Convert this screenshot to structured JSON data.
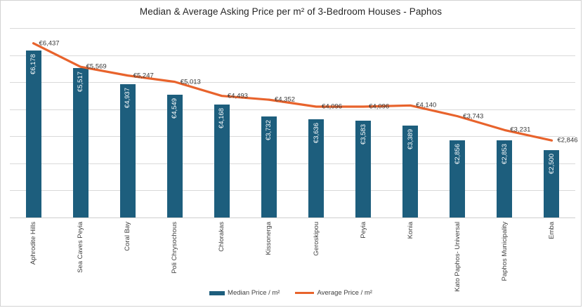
{
  "chart_data": {
    "type": "bar",
    "title": "Median & Average Asking Price per m² of 3-Bedroom Houses - Paphos",
    "categories": [
      "Aphrodite Hills",
      "Sea Caves Peyia",
      "Coral Bay",
      "Poli Chrysochous",
      "Chlorakas",
      "Kissonerga",
      "Geroskipou",
      "Peyia",
      "Konia",
      "Kato Paphos- Universal",
      "Paphos Municipality",
      "Emba"
    ],
    "series": [
      {
        "name": "Median Price / m²",
        "type": "bar",
        "values": [
          6178,
          5517,
          4937,
          4549,
          4168,
          3732,
          3636,
          3583,
          3389,
          2856,
          2853,
          2500
        ],
        "labels": [
          "€6,178",
          "€5,517",
          "€4,937",
          "€4,549",
          "€4,168",
          "€3,732",
          "€3,636",
          "€3,583",
          "€3,389",
          "€2,856",
          "€2,853",
          "€2,500"
        ]
      },
      {
        "name": "Average Price / m²",
        "type": "line",
        "values": [
          6437,
          5569,
          5247,
          5013,
          4493,
          4352,
          4096,
          4096,
          4140,
          3743,
          3231,
          2846
        ],
        "labels": [
          "€6,437",
          "€5,569",
          "€5,247",
          "€5,013",
          "€4,493",
          "€4,352",
          "€4,096",
          "€4,096",
          "€4,140",
          "€3,743",
          "€3,231",
          "€2,846"
        ]
      }
    ],
    "xlabel": "",
    "ylabel": "",
    "ylim": [
      0,
      7000
    ],
    "gridline_step": 1000,
    "grid": true,
    "y_axis_labels_visible": false,
    "legend_position": "bottom"
  },
  "colors": {
    "bar": "#1d5e7d",
    "line": "#e8632c",
    "grid": "#d9d9d9",
    "text": "#3f3f3f"
  }
}
